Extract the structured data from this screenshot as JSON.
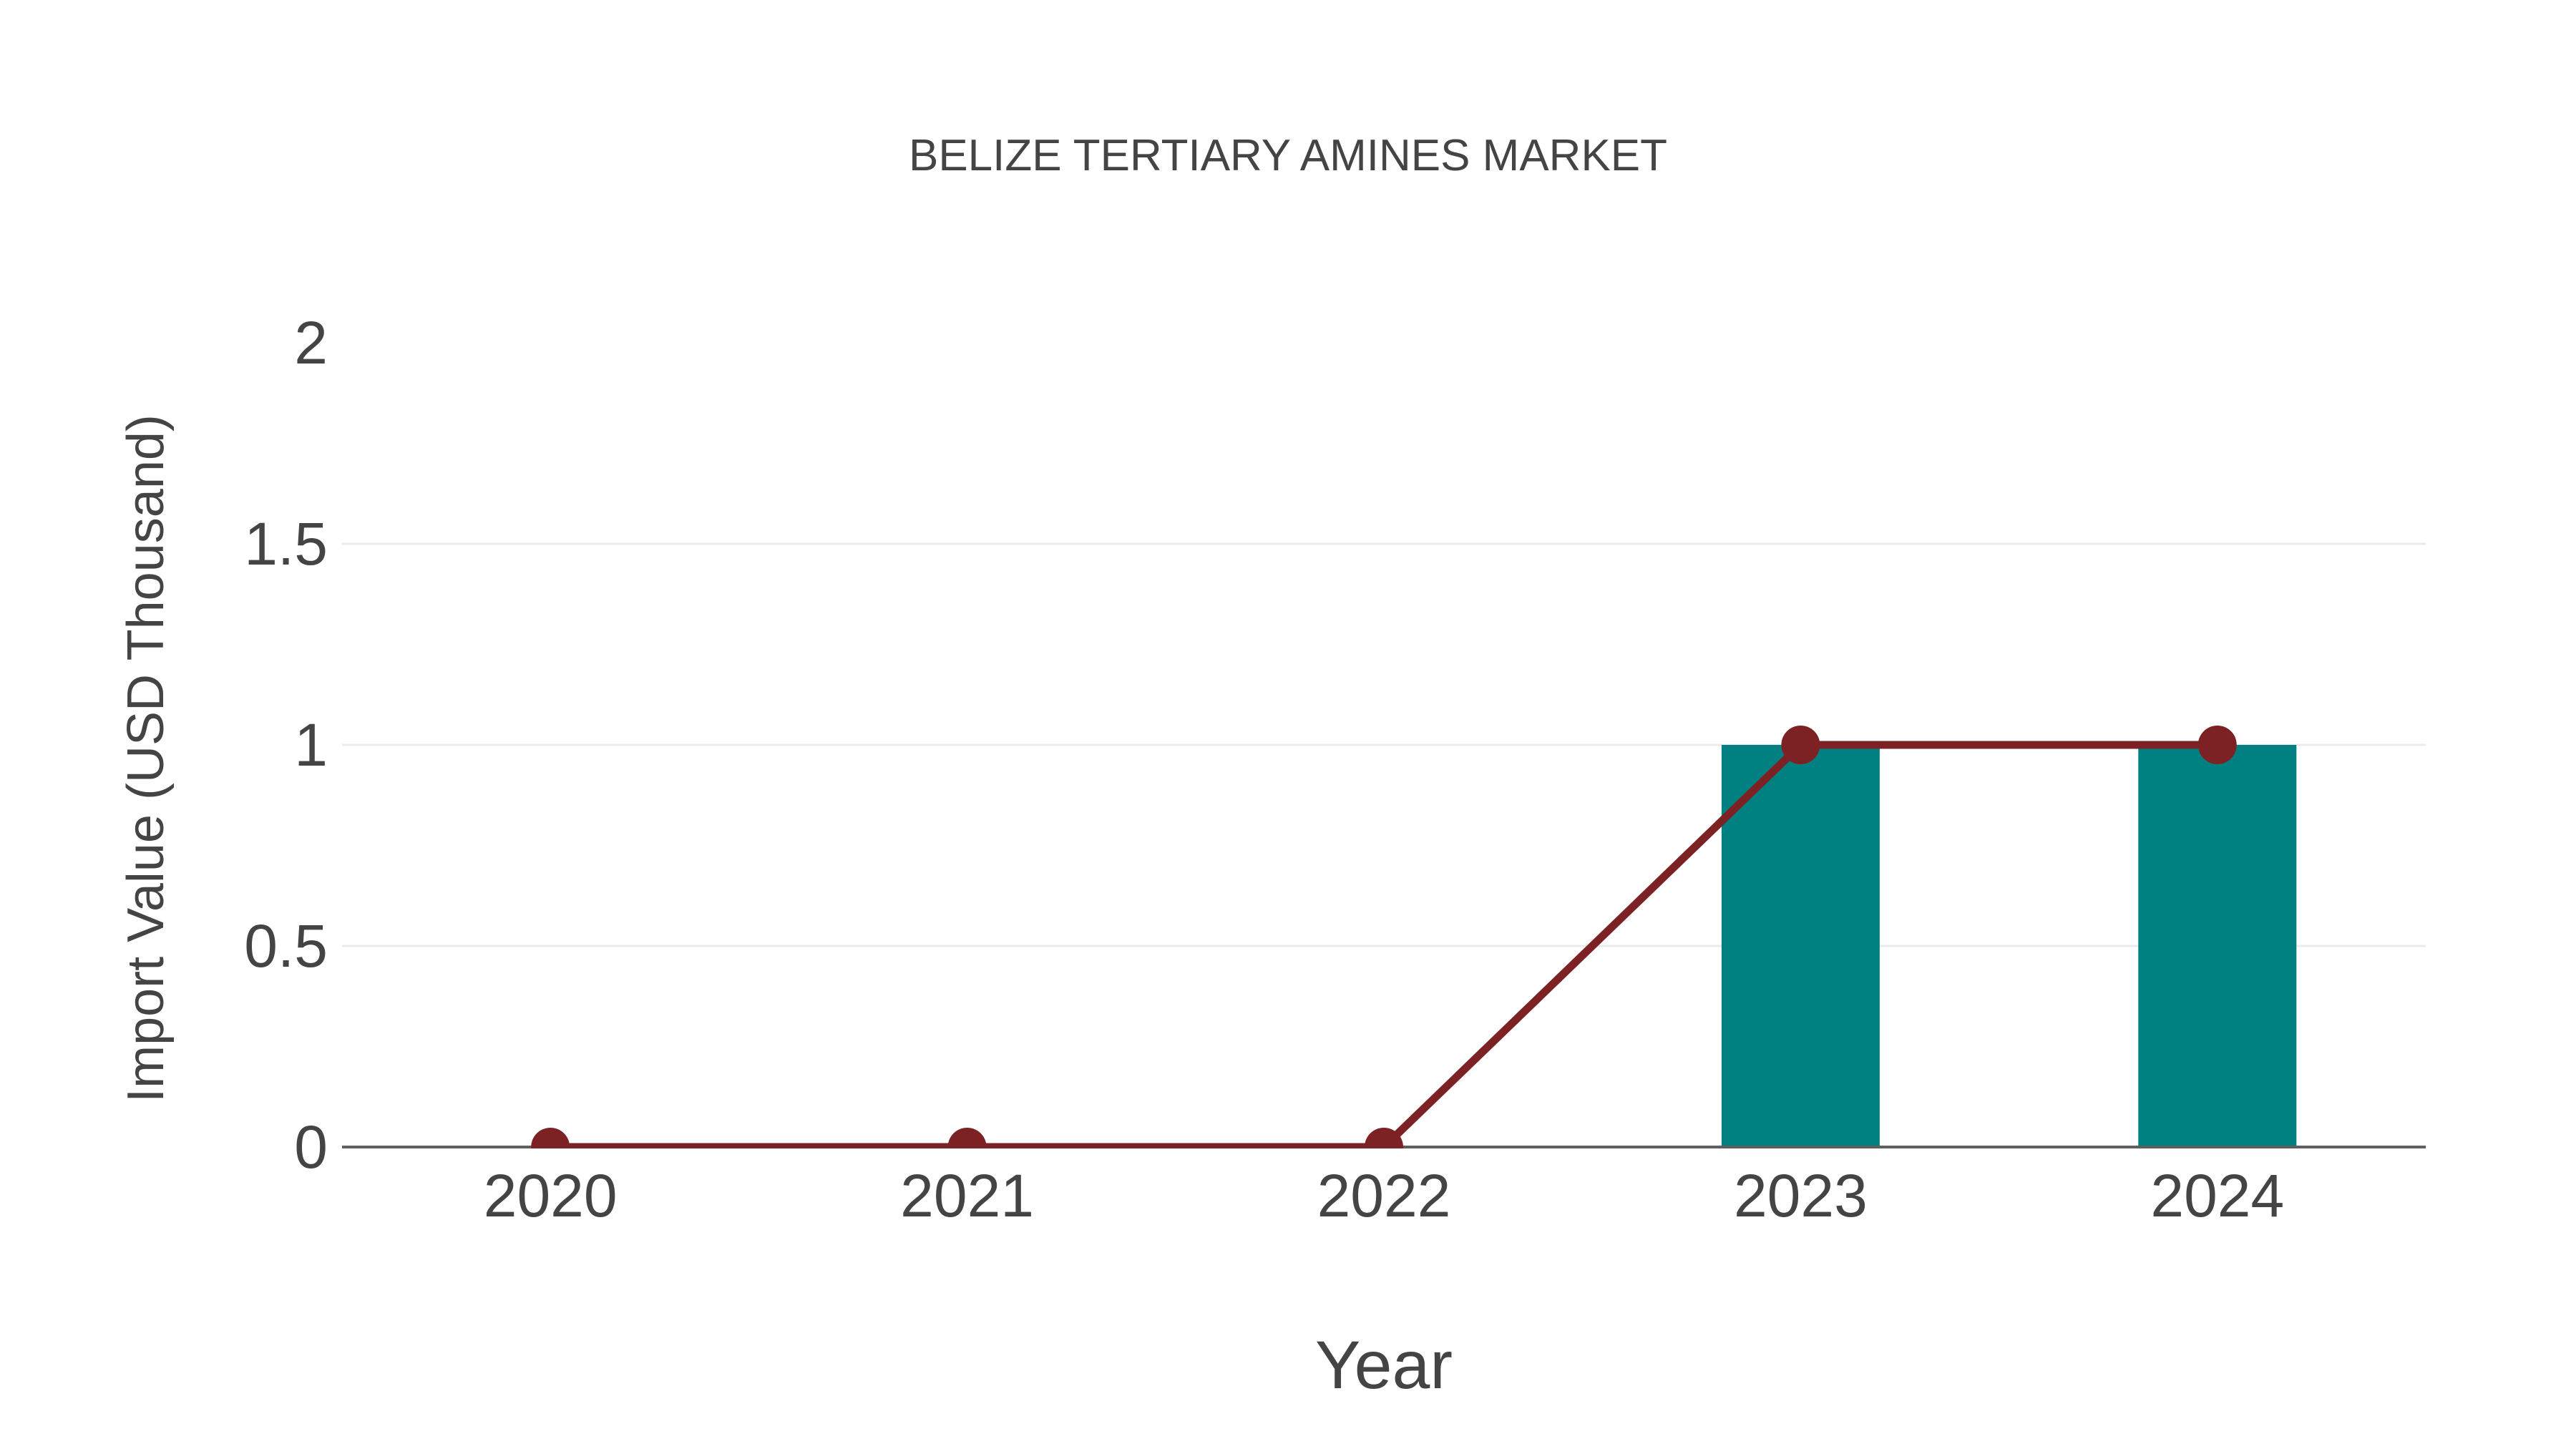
{
  "chart_data": {
    "type": "bar",
    "title": "BELIZE TERTIARY AMINES MARKET",
    "categories": [
      "2020",
      "2021",
      "2022",
      "2023",
      "2024"
    ],
    "series": [
      {
        "name": "import-value-bars",
        "type": "bar",
        "values": [
          0,
          0,
          0,
          1,
          1
        ],
        "color": "#008080"
      },
      {
        "name": "import-value-line",
        "type": "line",
        "values": [
          0,
          0,
          0,
          1,
          1
        ],
        "color": "#7d2224",
        "marker": "circle",
        "marker_color": "#7d2224"
      }
    ],
    "xlabel": "Year",
    "ylabel": "Import Value (USD Thousand)",
    "ylim": [
      0,
      2
    ],
    "yticks": [
      0,
      0.5,
      1,
      1.5,
      2
    ],
    "ytick_labels": [
      "0",
      "0.5",
      "1",
      "1.5",
      "2"
    ],
    "xtick_labels": [
      "2020",
      "2021",
      "2022",
      "2023",
      "2024"
    ],
    "grid": {
      "horizontal": true,
      "color": "#ebebeb",
      "gridline_at_top_tick": false,
      "gridline_at_zero": false
    },
    "legend": "none",
    "axis_line_color": "#5f5f5f",
    "text_color": "#444444",
    "background_color": "#ffffff"
  }
}
